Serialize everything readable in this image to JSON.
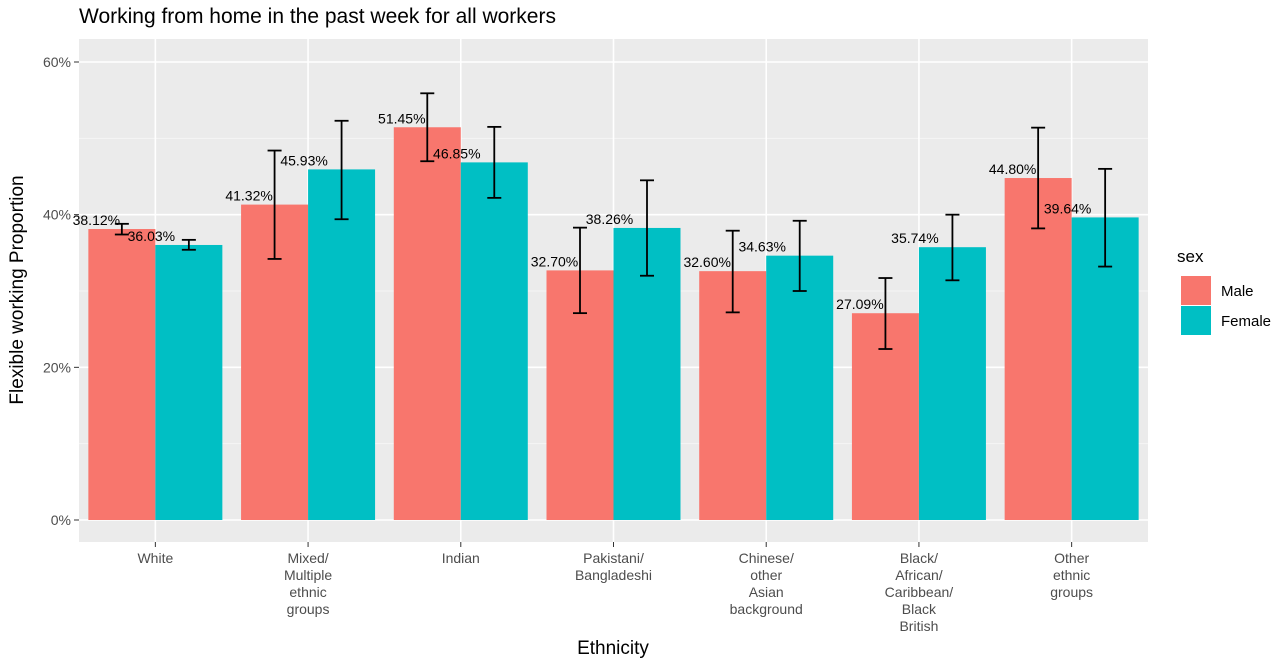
{
  "chart_data": {
    "type": "bar",
    "title": "Working from home in the past week for all workers",
    "xlabel": "Ethnicity",
    "ylabel": "Flexible working Proportion",
    "ylim": [
      0,
      0.6
    ],
    "yticks": [
      "0%",
      "20%",
      "40%",
      "60%"
    ],
    "grid": true,
    "legend": {
      "title": "sex",
      "placement": "right"
    },
    "categories": [
      [
        "White"
      ],
      [
        "Mixed/",
        "Multiple",
        "ethnic",
        "groups"
      ],
      [
        "Indian"
      ],
      [
        "Pakistani/",
        "Bangladeshi"
      ],
      [
        "Chinese/",
        "other",
        "Asian",
        "background"
      ],
      [
        "Black/",
        "African/",
        "Caribbean/",
        "Black",
        "British"
      ],
      [
        "Other",
        "ethnic",
        "groups"
      ]
    ],
    "series": [
      {
        "name": "Male",
        "color": "#f8766d",
        "values": [
          0.3812,
          0.4132,
          0.5145,
          0.327,
          0.326,
          0.2709,
          0.448
        ],
        "labels": [
          "38.12%",
          "41.32%",
          "51.45%",
          "32.70%",
          "32.60%",
          "27.09%",
          "44.80%"
        ],
        "err_low": [
          0.374,
          0.342,
          0.47,
          0.271,
          0.272,
          0.224,
          0.382
        ],
        "err_high": [
          0.388,
          0.484,
          0.559,
          0.383,
          0.379,
          0.317,
          0.514
        ]
      },
      {
        "name": "Female",
        "color": "#00bfc4",
        "values": [
          0.3603,
          0.4593,
          0.4685,
          0.3826,
          0.3463,
          0.3574,
          0.3964
        ],
        "labels": [
          "36.03%",
          "45.93%",
          "46.85%",
          "38.26%",
          "34.63%",
          "35.74%",
          "39.64%"
        ],
        "err_low": [
          0.354,
          0.394,
          0.422,
          0.32,
          0.3,
          0.314,
          0.332
        ],
        "err_high": [
          0.367,
          0.523,
          0.515,
          0.445,
          0.392,
          0.4,
          0.46
        ]
      }
    ]
  }
}
